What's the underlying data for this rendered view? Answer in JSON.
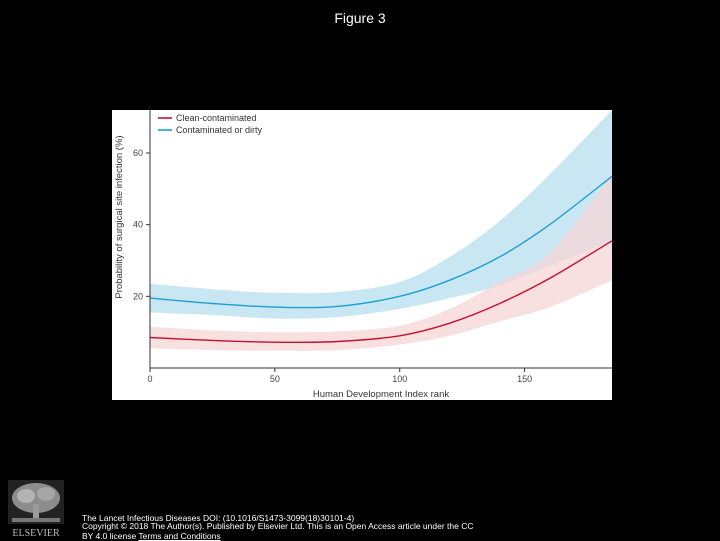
{
  "slide": {
    "title": "Figure 3"
  },
  "chart_data": {
    "type": "line",
    "xlabel": "Human Development Index rank",
    "ylabel": "Probability of surgical site infection (%)",
    "xlim": [
      0,
      185
    ],
    "ylim": [
      0,
      72
    ],
    "x_ticks": [
      0,
      50,
      100,
      150
    ],
    "y_ticks": [
      20,
      40,
      60
    ],
    "grid": false,
    "legend_position": "top-left",
    "series": [
      {
        "name": "Clean-contaminated",
        "color": "#c8102e",
        "band_color": "#f6d6d6",
        "x": [
          0,
          25,
          50,
          75,
          100,
          120,
          140,
          160,
          185
        ],
        "y": [
          8.5,
          7.7,
          7.2,
          7.4,
          9.0,
          12.5,
          18.0,
          25.0,
          35.5
        ],
        "lower": [
          5.5,
          5.0,
          4.8,
          5.0,
          6.5,
          9.0,
          13.0,
          17.0,
          24.5
        ],
        "upper": [
          11.5,
          10.5,
          10.0,
          10.2,
          11.8,
          16.5,
          24.0,
          32.0,
          54.0
        ]
      },
      {
        "name": "Contaminated or dirty",
        "color": "#1f9fd0",
        "band_color": "#b7dfee",
        "x": [
          0,
          25,
          50,
          75,
          100,
          120,
          140,
          160,
          185
        ],
        "y": [
          19.5,
          18.0,
          17.0,
          17.2,
          20.0,
          24.5,
          31.0,
          40.0,
          53.5
        ],
        "lower": [
          15.5,
          14.8,
          13.8,
          14.2,
          16.5,
          19.5,
          23.0,
          28.5,
          35.5
        ],
        "upper": [
          23.5,
          22.0,
          21.0,
          21.2,
          24.0,
          31.0,
          41.0,
          54.0,
          72.0
        ]
      }
    ]
  },
  "footer": {
    "logo_text": "ELSEVIER",
    "citation": "The Lancet Infectious Diseases DOI: (10.1016/S1473-3099(18)30101-4)",
    "copyright": "Copyright © 2018 The Author(s). Published by Elsevier Ltd. This is an Open Access article under the CC",
    "license_prefix": "BY 4.0 license ",
    "terms_link": "Terms and Conditions"
  }
}
